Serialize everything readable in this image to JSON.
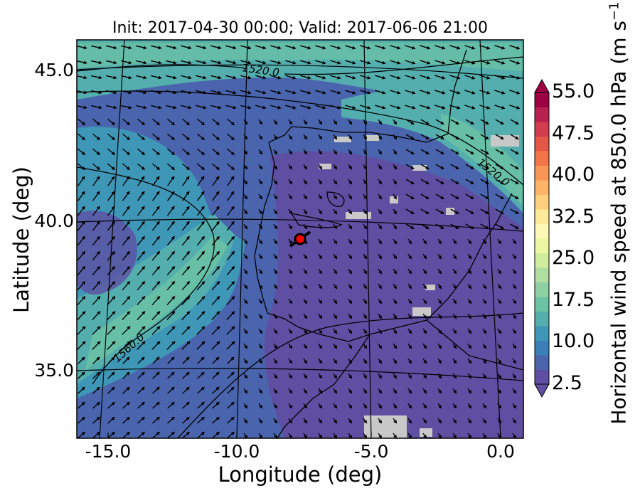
{
  "title": "Init: 2017-04-30 00:00; Valid: 2017-06-06 21:00",
  "axes": {
    "xlabel": "Longitude (deg)",
    "ylabel": "Latitude (deg)",
    "xticks": [
      "-15.0",
      "-10.0",
      "-5.0",
      "0.0"
    ],
    "yticks": [
      "45.0",
      "40.0",
      "35.0"
    ],
    "xrange": [
      -16.0,
      0.5
    ],
    "yrange": [
      33.0,
      46.0
    ]
  },
  "colorbar": {
    "label": "Horizontal wind speed at 850.0 hPa (m s",
    "label_exp": "−1",
    "label_close": ")",
    "ticks": [
      "55.0",
      "47.5",
      "40.0",
      "32.5",
      "25.0",
      "17.5",
      "10.0",
      "2.5"
    ],
    "min": 2.5,
    "max": 55.0,
    "colors": [
      "#5e4fa2",
      "#4a65ae",
      "#3a7fb8",
      "#3f97b7",
      "#54aead",
      "#6cc3a4",
      "#8ecfa4",
      "#b1dfa2",
      "#d1ec9c",
      "#ecf7a1",
      "#fbf9b5",
      "#fee99a",
      "#fed07e",
      "#fdb466",
      "#fa9655",
      "#f37448",
      "#e45645",
      "#d23c4f",
      "#b72151",
      "#9e0142"
    ]
  },
  "contours": [
    {
      "label": "1520.0"
    },
    {
      "label": "1520.0"
    },
    {
      "label": "1560.0"
    }
  ],
  "marker": {
    "name": "selected-point",
    "color": "#ff0000",
    "lon": -7.6,
    "lat": 39.4
  },
  "colors": {
    "land_missing": "#c8c8c8",
    "frame": "#000000"
  }
}
